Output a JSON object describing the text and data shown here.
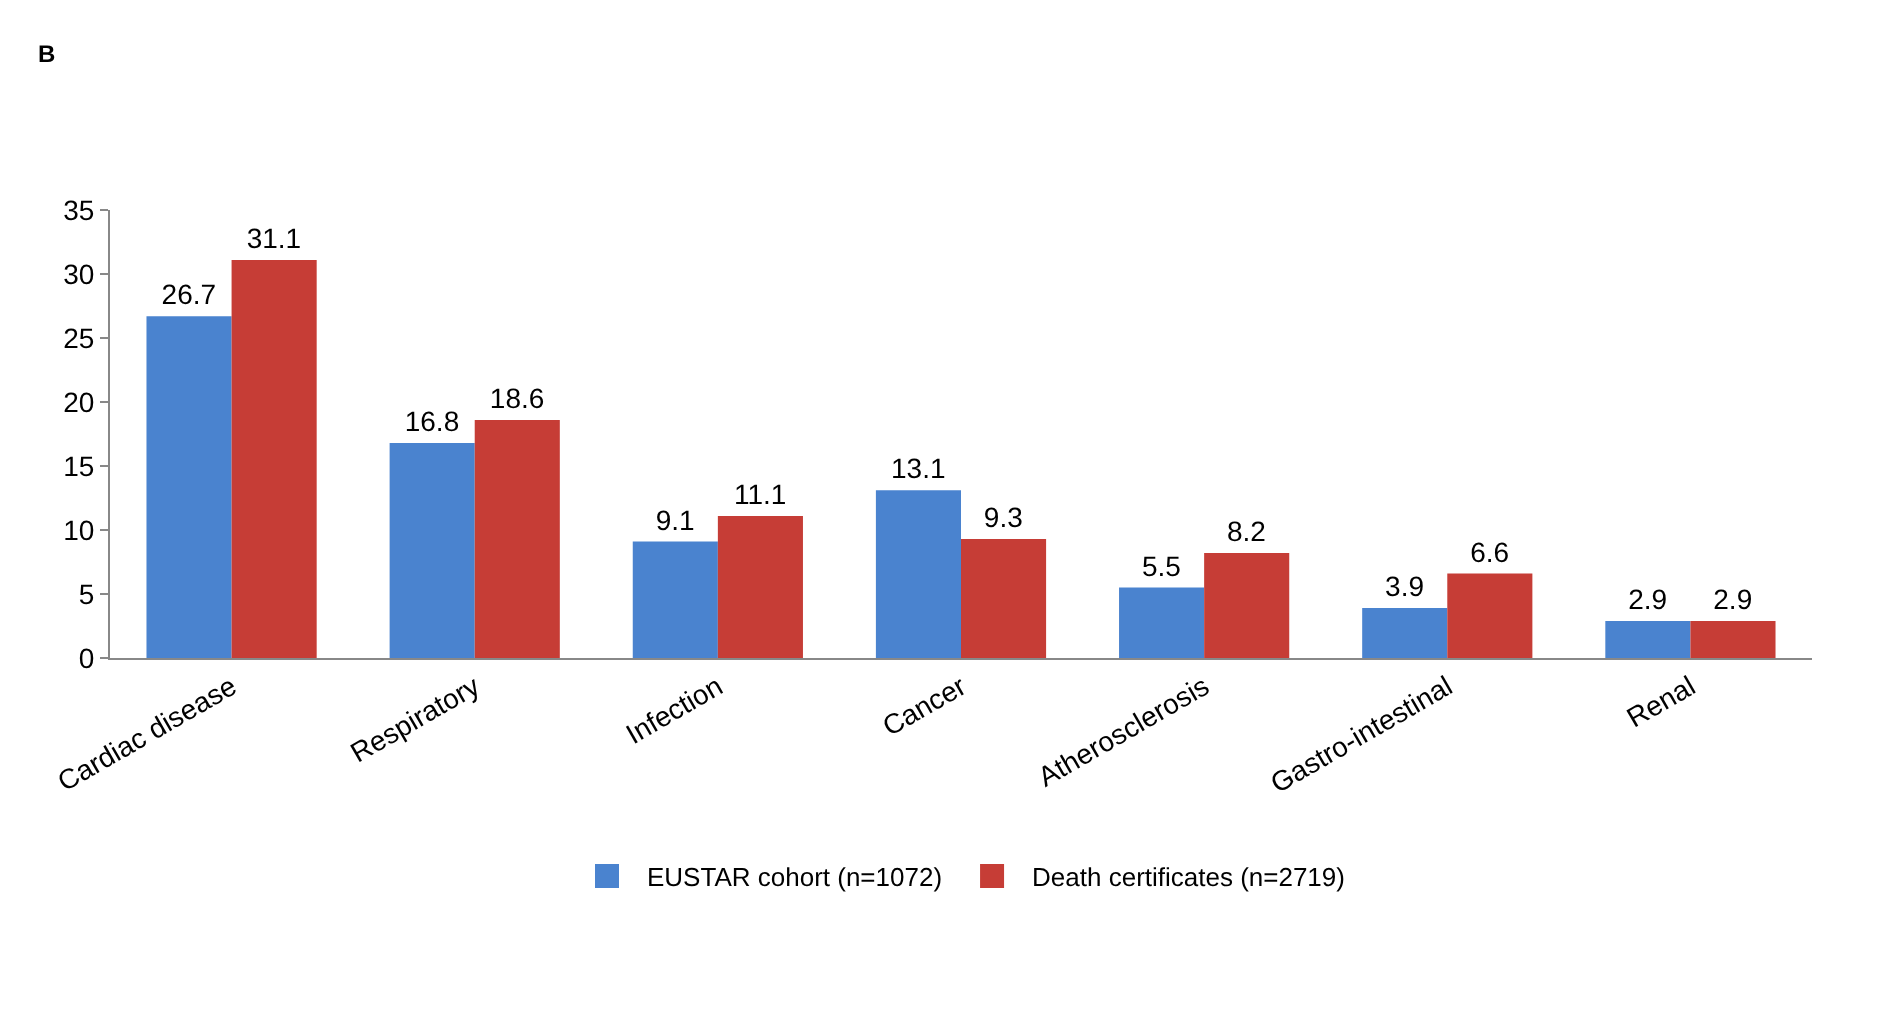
{
  "chart_data": {
    "type": "bar",
    "annotations": [
      "B"
    ],
    "categories": [
      "Cardiac disease",
      "Respiratory",
      "Infection",
      "Cancer",
      "Atherosclerosis",
      "Gastro-intestinal",
      "Renal"
    ],
    "series": [
      {
        "name": "EUSTAR cohort (n=1072)",
        "color": "#4a83cf",
        "values": [
          26.7,
          16.8,
          9.1,
          13.1,
          5.5,
          3.9,
          2.9
        ]
      },
      {
        "name": "Death certificates (n=2719)",
        "color": "#c63d36",
        "values": [
          31.1,
          18.6,
          11.1,
          9.3,
          8.2,
          6.6,
          2.9
        ]
      }
    ],
    "ylim": [
      0,
      35
    ],
    "yticks": [
      0,
      5,
      10,
      15,
      20,
      25,
      30,
      35
    ],
    "data_labels": true,
    "grid": false,
    "legend": "bottom"
  }
}
